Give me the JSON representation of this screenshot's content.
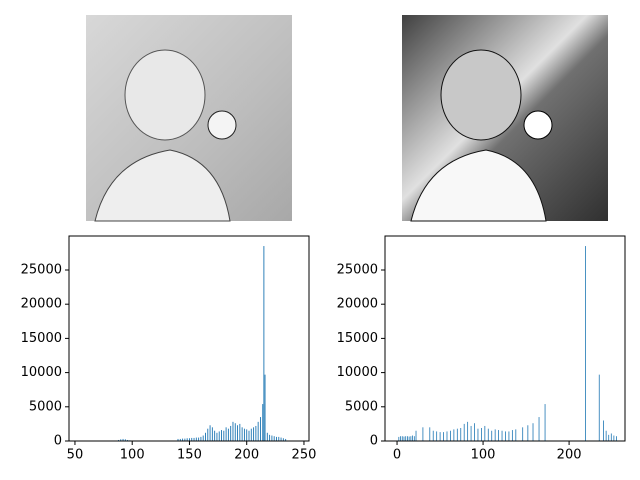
{
  "chart_data": [
    {
      "type": "bar",
      "color": "#1f77b4",
      "x": [
        88,
        90,
        92,
        94,
        96,
        98,
        140,
        142,
        144,
        146,
        148,
        150,
        152,
        154,
        156,
        158,
        160,
        162,
        164,
        166,
        168,
        170,
        172,
        174,
        176,
        178,
        180,
        182,
        184,
        186,
        188,
        190,
        192,
        194,
        196,
        198,
        200,
        202,
        204,
        206,
        208,
        210,
        212,
        214,
        215,
        216,
        218,
        220,
        222,
        224,
        226,
        228,
        230,
        232,
        234
      ],
      "values": [
        150,
        250,
        300,
        250,
        150,
        100,
        300,
        300,
        350,
        350,
        400,
        400,
        450,
        450,
        500,
        500,
        600,
        800,
        1200,
        1800,
        2300,
        2000,
        1500,
        1200,
        1400,
        1600,
        1500,
        2000,
        1800,
        2200,
        2800,
        2600,
        2300,
        2500,
        2000,
        1800,
        1700,
        1500,
        1800,
        2000,
        2200,
        2800,
        3500,
        5400,
        28500,
        9700,
        1200,
        900,
        800,
        700,
        600,
        600,
        500,
        400,
        300
      ],
      "xlim": [
        44.8,
        254.4
      ],
      "ylim": [
        0,
        29970
      ],
      "xticks": [
        50,
        100,
        150,
        200,
        250
      ],
      "yticks": [
        0,
        5000,
        10000,
        15000,
        20000,
        25000
      ]
    },
    {
      "type": "bar",
      "color": "#1f77b4",
      "x": [
        2,
        4,
        6,
        8,
        10,
        12,
        14,
        16,
        18,
        20,
        22,
        30,
        38,
        42,
        46,
        50,
        54,
        58,
        62,
        66,
        70,
        74,
        78,
        82,
        86,
        90,
        94,
        98,
        102,
        106,
        110,
        114,
        118,
        122,
        126,
        130,
        134,
        138,
        146,
        152,
        158,
        165,
        172,
        219,
        235,
        240,
        243,
        246,
        249,
        252,
        255
      ],
      "values": [
        600,
        700,
        700,
        650,
        700,
        700,
        650,
        700,
        800,
        700,
        1500,
        2000,
        2000,
        1500,
        1400,
        1300,
        1300,
        1400,
        1500,
        1700,
        1800,
        1900,
        2500,
        2800,
        2200,
        2600,
        1800,
        1900,
        2200,
        1800,
        1500,
        1700,
        1600,
        1500,
        1400,
        1400,
        1600,
        1700,
        2000,
        2300,
        2600,
        3500,
        5400,
        28500,
        9700,
        3000,
        1500,
        900,
        1100,
        800,
        700
      ],
      "xlim": [
        -14,
        265
      ],
      "ylim": [
        0,
        29970
      ],
      "xticks": [
        0,
        100,
        200
      ],
      "yticks": [
        0,
        5000,
        10000,
        15000,
        20000,
        25000
      ]
    }
  ]
}
